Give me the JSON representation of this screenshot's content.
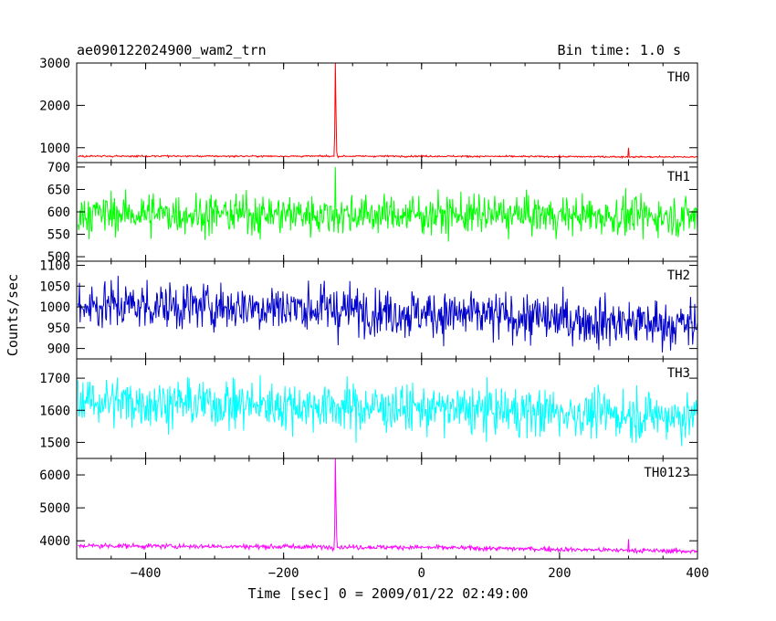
{
  "title_left": "ae090122024900_wam2_trn",
  "title_right": "Bin time: 1.0 s",
  "xlabel": "Time [sec] 0 = 2009/01/22 02:49:00",
  "ylabel": "Counts/sec",
  "chart_data": {
    "type": "line",
    "x": {
      "range": [
        -500,
        400
      ],
      "bin_size": 1.0,
      "ticks": [
        -400,
        -200,
        0,
        200,
        400
      ],
      "tick_labels": [
        "−400",
        "−200",
        "0",
        "200",
        "400"
      ]
    },
    "burst": {
      "time": -125,
      "note": "short spike visible in TH0 and TH0123"
    },
    "panels": [
      {
        "name": "TH0",
        "color": "#ff0000",
        "ylim": [
          650,
          3000
        ],
        "yticks": [
          1000,
          2000,
          3000
        ],
        "ytick_labels": [
          "1000",
          "2000",
          "3000"
        ],
        "baseline": [
          [
            -500,
            800
          ],
          [
            0,
            800
          ],
          [
            400,
            780
          ]
        ],
        "noise_amplitude": 25,
        "spikes": [
          [
            -126,
            1300
          ],
          [
            -125,
            3000
          ],
          [
            -124,
            1800
          ],
          [
            -123,
            900
          ],
          [
            300,
            1000
          ]
        ]
      },
      {
        "name": "TH1",
        "color": "#00ff00",
        "ylim": [
          490,
          710
        ],
        "yticks": [
          500,
          550,
          600,
          650,
          700
        ],
        "ytick_labels": [
          "500",
          "550",
          "600",
          "650",
          "700"
        ],
        "baseline": [
          [
            -500,
            596
          ],
          [
            0,
            594
          ],
          [
            400,
            590
          ]
        ],
        "noise_amplitude": 55,
        "spikes": [
          [
            -125,
            700
          ]
        ]
      },
      {
        "name": "TH2",
        "color": "#0000cc",
        "ylim": [
          875,
          1110
        ],
        "yticks": [
          900,
          950,
          1000,
          1050,
          1100
        ],
        "ytick_labels": [
          "900",
          "950",
          "1000",
          "1050",
          "1100"
        ],
        "baseline": [
          [
            -500,
            1005
          ],
          [
            -200,
            1000
          ],
          [
            0,
            985
          ],
          [
            400,
            955
          ]
        ],
        "noise_amplitude": 75,
        "spikes": []
      },
      {
        "name": "TH3",
        "color": "#00ffff",
        "ylim": [
          1450,
          1760
        ],
        "yticks": [
          1500,
          1600,
          1700
        ],
        "ytick_labels": [
          "1500",
          "1600",
          "1700"
        ],
        "baseline": [
          [
            -500,
            1630
          ],
          [
            0,
            1605
          ],
          [
            400,
            1580
          ]
        ],
        "noise_amplitude": 95,
        "spikes": []
      },
      {
        "name": "TH0123",
        "color": "#ff00ff",
        "ylim": [
          3450,
          6500
        ],
        "yticks": [
          4000,
          5000,
          6000
        ],
        "ytick_labels": [
          "4000",
          "5000",
          "6000"
        ],
        "baseline": [
          [
            -500,
            3850
          ],
          [
            0,
            3800
          ],
          [
            400,
            3680
          ]
        ],
        "noise_amplitude": 90,
        "spikes": [
          [
            -126,
            4300
          ],
          [
            -125,
            6500
          ],
          [
            -124,
            5100
          ],
          [
            -123,
            4100
          ],
          [
            300,
            4050
          ]
        ]
      }
    ]
  }
}
